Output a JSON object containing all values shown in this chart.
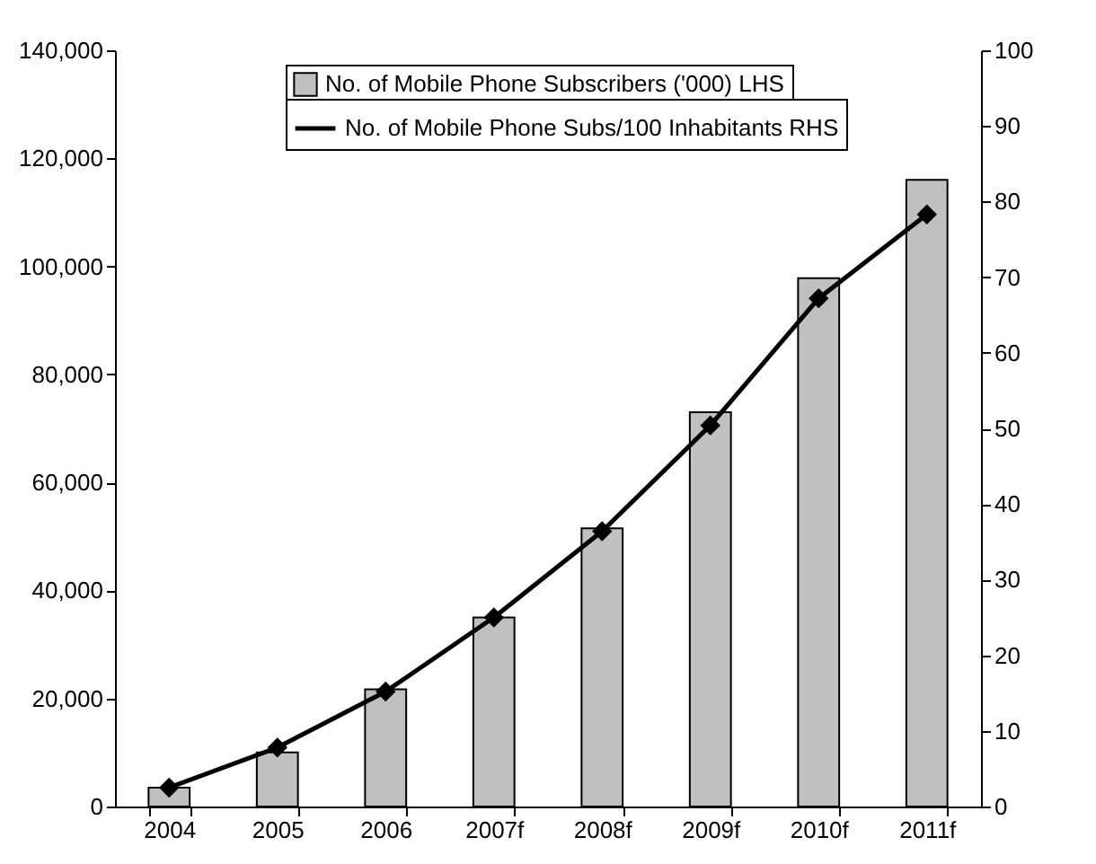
{
  "chart_data": {
    "type": "bar",
    "categories": [
      "2004",
      "2005",
      "2006",
      "2007f",
      "2008f",
      "2009f",
      "2010f",
      "2011f"
    ],
    "series": [
      {
        "name": "No. of Mobile Phone Subscribers ('000) LHS",
        "color": "#c0c0c0",
        "values": [
          3500,
          10000,
          21700,
          35000,
          51500,
          73000,
          97800,
          116000
        ]
      },
      {
        "name": "No. of Mobile Phone Subs/100 Inhabitants RHS",
        "type": "line",
        "axis": "y2",
        "color": "#000000",
        "values": [
          2.5,
          7.8,
          15.2,
          25,
          36.4,
          50.4,
          67.2,
          78.3
        ]
      }
    ],
    "ylim": [
      0,
      140000
    ],
    "yticks": [
      0,
      {
        "value": 20000,
        "label": "20,000"
      },
      {
        "value": 40000,
        "label": "40,000"
      },
      {
        "value": 60000,
        "label": "60,000"
      },
      {
        "value": 80000,
        "label": "80,000"
      },
      {
        "value": 100000,
        "label": "100,000"
      },
      {
        "value": 120000,
        "label": "120,000"
      },
      {
        "value": 140000,
        "label": "140,000"
      }
    ],
    "y2lim": [
      0,
      100
    ],
    "y2ticks": [
      0,
      10,
      20,
      30,
      40,
      50,
      60,
      70,
      80,
      90,
      100
    ],
    "marker": "diamond",
    "line_style": "solid",
    "legend": "top",
    "grid": false
  }
}
